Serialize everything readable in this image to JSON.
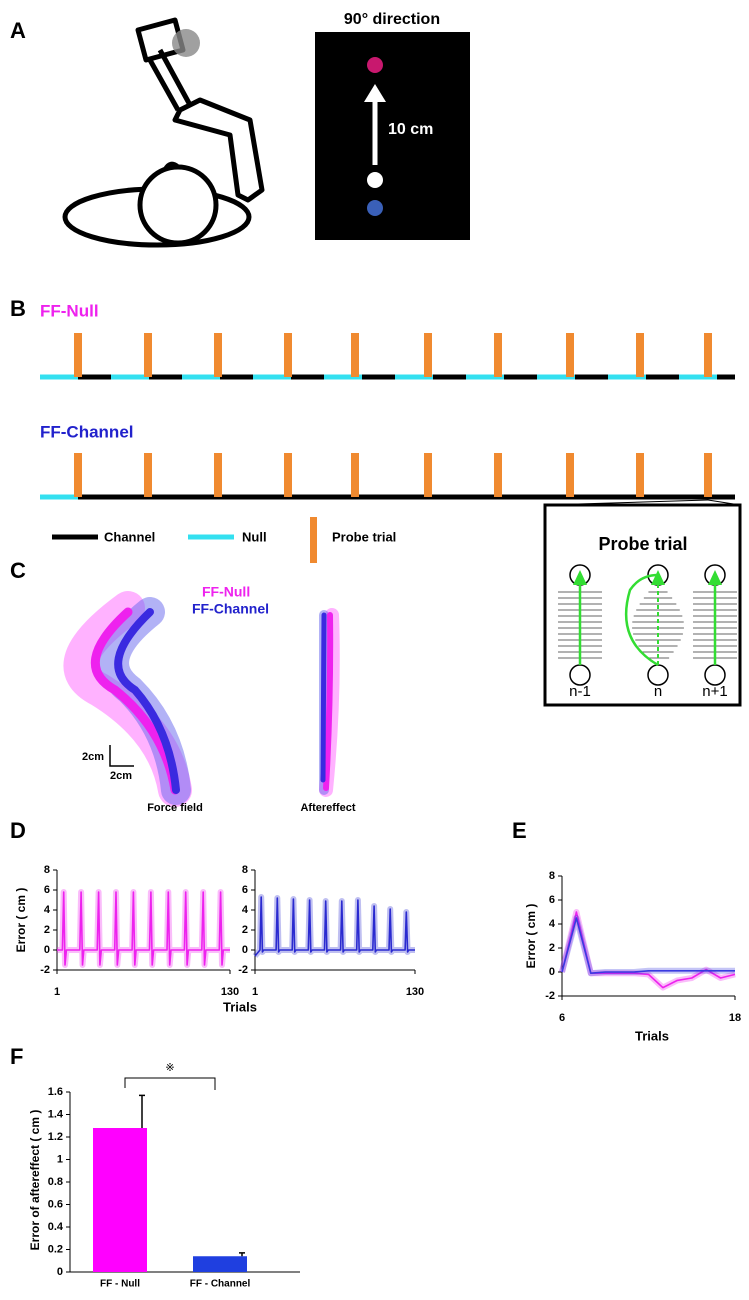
{
  "figure": {
    "panel_labels": [
      "A",
      "B",
      "C",
      "D",
      "E",
      "F"
    ],
    "panel_a": {
      "title": "90° direction",
      "distance": "10 cm"
    },
    "panel_b": {
      "ff_null": "FF-Null",
      "ff_channel": "FF-Channel",
      "legend": [
        "Channel",
        "Null",
        "Probe trial"
      ],
      "inset": {
        "title": "Probe trial",
        "trials": [
          "n-1",
          "n",
          "n+1"
        ]
      }
    },
    "panel_c": {
      "ff_null": "FF-Null",
      "ff_channel": "FF-Channel",
      "scale_y": "2cm",
      "scale_x": "2cm",
      "left_label": "Force field",
      "right_label": "Aftereffect"
    }
  },
  "chart_data": [
    {
      "type": "line",
      "color": "#ee22ee",
      "xlabel": "Trials",
      "ylabel": "Error ( cm )",
      "x": [
        1,
        5,
        6,
        7,
        8,
        18,
        19,
        20,
        21,
        31,
        32,
        33,
        34,
        44,
        45,
        46,
        47,
        57,
        58,
        59,
        60,
        70,
        71,
        72,
        73,
        83,
        84,
        85,
        86,
        96,
        97,
        98,
        99,
        109,
        110,
        111,
        112,
        122,
        123,
        124,
        125,
        130
      ],
      "values": [
        0,
        0,
        5.8,
        -1.5,
        0,
        0,
        5.8,
        -1.5,
        0,
        0,
        5.8,
        -1.5,
        0,
        0,
        5.8,
        -1.5,
        0,
        0,
        5.8,
        -1.5,
        0,
        0,
        5.8,
        -1.5,
        0,
        0,
        5.8,
        -1.5,
        0,
        0,
        5.8,
        -1.5,
        0,
        0,
        5.8,
        -1.5,
        0,
        0,
        5.8,
        -1.5,
        0,
        0
      ],
      "xlim": [
        1,
        130
      ],
      "xticks": [
        1,
        130
      ],
      "ylim": [
        -2,
        8
      ],
      "yticks": [
        -2,
        0,
        2,
        4,
        6,
        8
      ]
    },
    {
      "type": "line",
      "color": "#2a2ad0",
      "x": [
        1,
        5,
        6,
        7,
        8,
        18,
        19,
        20,
        21,
        31,
        32,
        33,
        34,
        44,
        45,
        46,
        47,
        57,
        58,
        59,
        60,
        70,
        71,
        72,
        73,
        83,
        84,
        85,
        86,
        96,
        97,
        98,
        99,
        109,
        110,
        111,
        112,
        122,
        123,
        124,
        125,
        130
      ],
      "values": [
        -0.6,
        0,
        5.3,
        -0.2,
        0,
        0,
        5.2,
        -0.2,
        0,
        0,
        5.1,
        -0.2,
        0,
        0,
        5.0,
        -0.2,
        0,
        0,
        4.9,
        -0.2,
        0,
        0,
        4.9,
        -0.2,
        0,
        0,
        5.0,
        -0.2,
        0,
        0,
        4.4,
        -0.2,
        0,
        0,
        4.1,
        -0.2,
        0,
        0,
        3.8,
        -0.2,
        0,
        0
      ],
      "xlim": [
        1,
        130
      ],
      "xticks": [
        1,
        130
      ],
      "ylim": [
        -2,
        8
      ],
      "yticks": [
        -2,
        0,
        2,
        4,
        6,
        8
      ]
    },
    {
      "type": "line",
      "xlabel": "Trials",
      "ylabel": "Error ( cm )",
      "x": [
        6,
        7,
        8,
        9,
        10,
        11,
        12,
        13,
        14,
        15,
        16,
        17,
        18
      ],
      "series": [
        {
          "color": "#ee22ee",
          "values": [
            0,
            5.0,
            -0.1,
            -0.1,
            -0.1,
            -0.1,
            -0.2,
            -1.3,
            -0.7,
            -0.5,
            0.2,
            -0.5,
            -0.2
          ]
        },
        {
          "color": "#3a3ae0",
          "values": [
            0,
            4.5,
            -0.1,
            0,
            0,
            0,
            0.1,
            0.1,
            0.1,
            0.1,
            0.1,
            0.1,
            0.1
          ]
        }
      ],
      "xlim": [
        6,
        18
      ],
      "xticks": [
        6,
        18
      ],
      "ylim": [
        -2,
        8
      ],
      "yticks": [
        -2,
        0,
        2,
        4,
        6,
        8
      ]
    },
    {
      "type": "bar",
      "ylabel": "Error of aftereffect ( cm )",
      "annotation": "※",
      "categories": [
        "FF - Null",
        "FF - Channel"
      ],
      "values": [
        1.28,
        0.14
      ],
      "errors": [
        0.29,
        0.03
      ],
      "colors": [
        "#ff00ff",
        "#1f3fe0"
      ],
      "ylim": [
        0,
        1.6
      ],
      "yticks": [
        0,
        0.2,
        0.4,
        0.6,
        0.8,
        1,
        1.2,
        1.4,
        1.6
      ]
    }
  ]
}
